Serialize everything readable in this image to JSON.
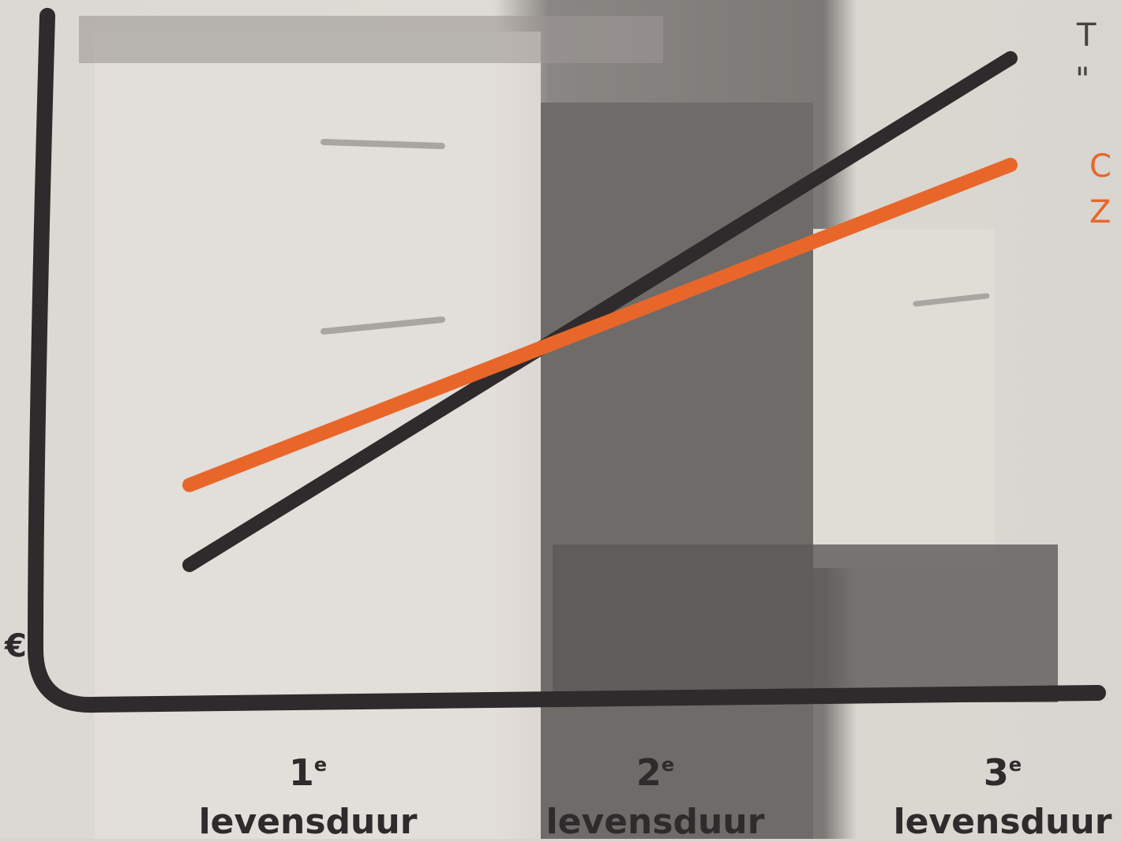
{
  "chart_data": {
    "type": "line",
    "categories": [
      "1e levensduur",
      "2e levensduur",
      "3e levensduur"
    ],
    "x": [
      1,
      2,
      3
    ],
    "ylabel": "€",
    "series": [
      {
        "color": "#2f2b2c",
        "values": [
          1.0,
          2.9,
          4.8
        ]
      },
      {
        "color": "#e8662a",
        "values": [
          1.6,
          2.8,
          4.0
        ]
      }
    ],
    "ticks": [
      {
        "num": "1",
        "sup": "e",
        "word": "levensduur"
      },
      {
        "num": "2",
        "sup": "e",
        "word": "levensduur"
      },
      {
        "num": "3",
        "sup": "e",
        "word": "levensduur"
      }
    ],
    "legend_fragments": {
      "top": "T",
      "quote": "\"",
      "orange_1": "C",
      "orange_2": "Z"
    },
    "grid": false,
    "legend": "top-right"
  }
}
